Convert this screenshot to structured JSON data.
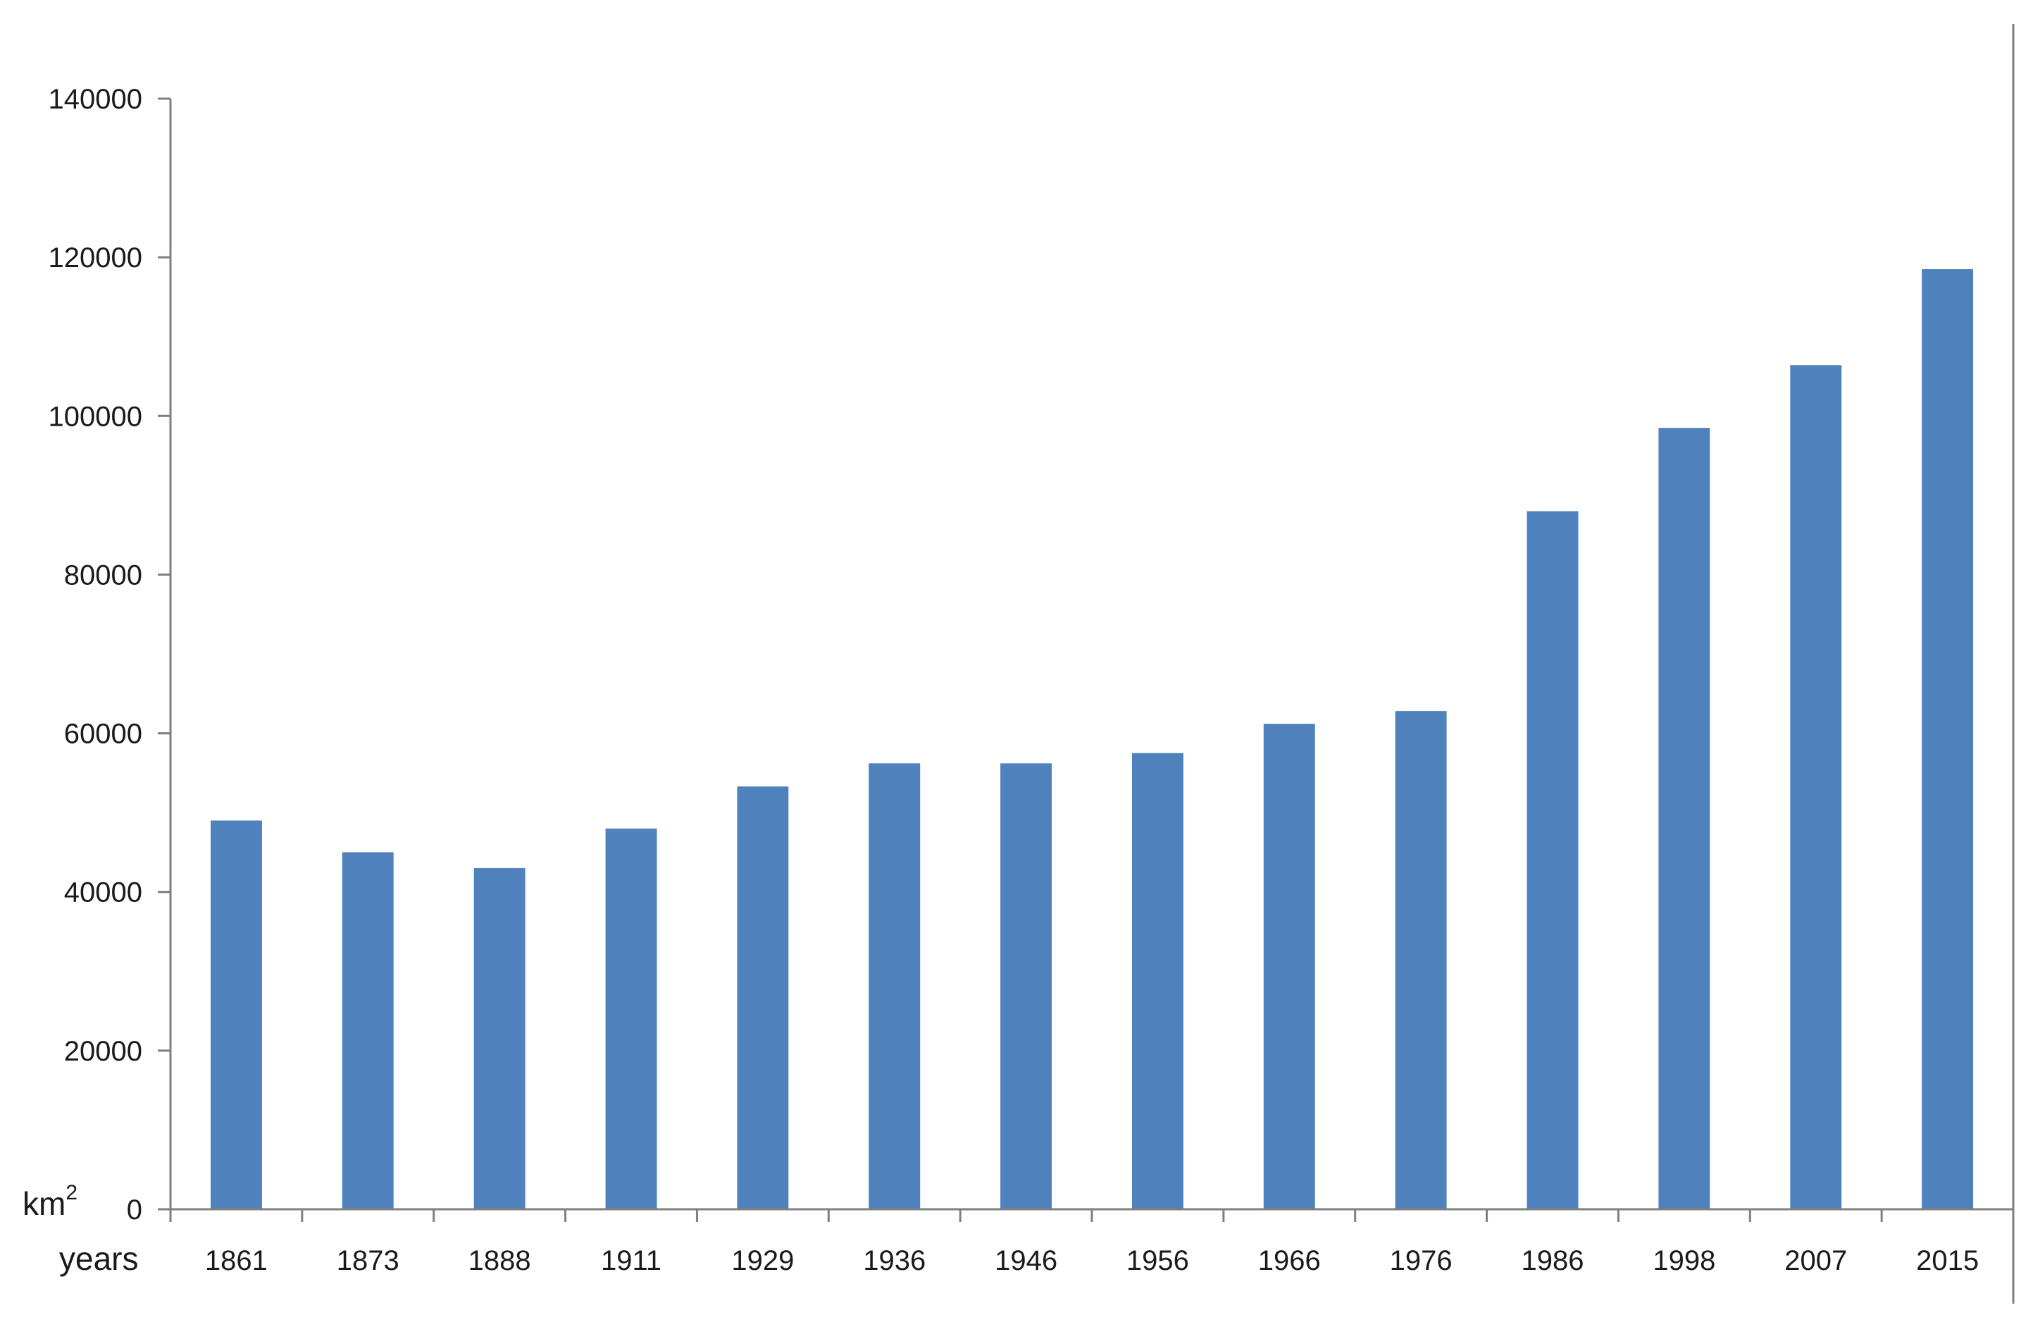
{
  "chart_data": {
    "type": "bar",
    "title": "",
    "xlabel": "years",
    "ylabel": "km",
    "ylabel_superscript": "2",
    "categories": [
      "1861",
      "1873",
      "1888",
      "1911",
      "1929",
      "1936",
      "1946",
      "1956",
      "1966",
      "1976",
      "1986",
      "1998",
      "2007",
      "2015"
    ],
    "values": [
      49000,
      45000,
      43000,
      48000,
      53300,
      56200,
      56200,
      57500,
      61200,
      62800,
      88000,
      98500,
      106400,
      118500
    ],
    "ylim": [
      0,
      140000
    ],
    "yticks": [
      "0",
      "20000",
      "40000",
      "60000",
      "80000",
      "100000",
      "120000",
      "140000"
    ],
    "bar_color": "#4F81BD",
    "axis_color": "#7f7f7f",
    "grid": false,
    "legend": "none"
  }
}
